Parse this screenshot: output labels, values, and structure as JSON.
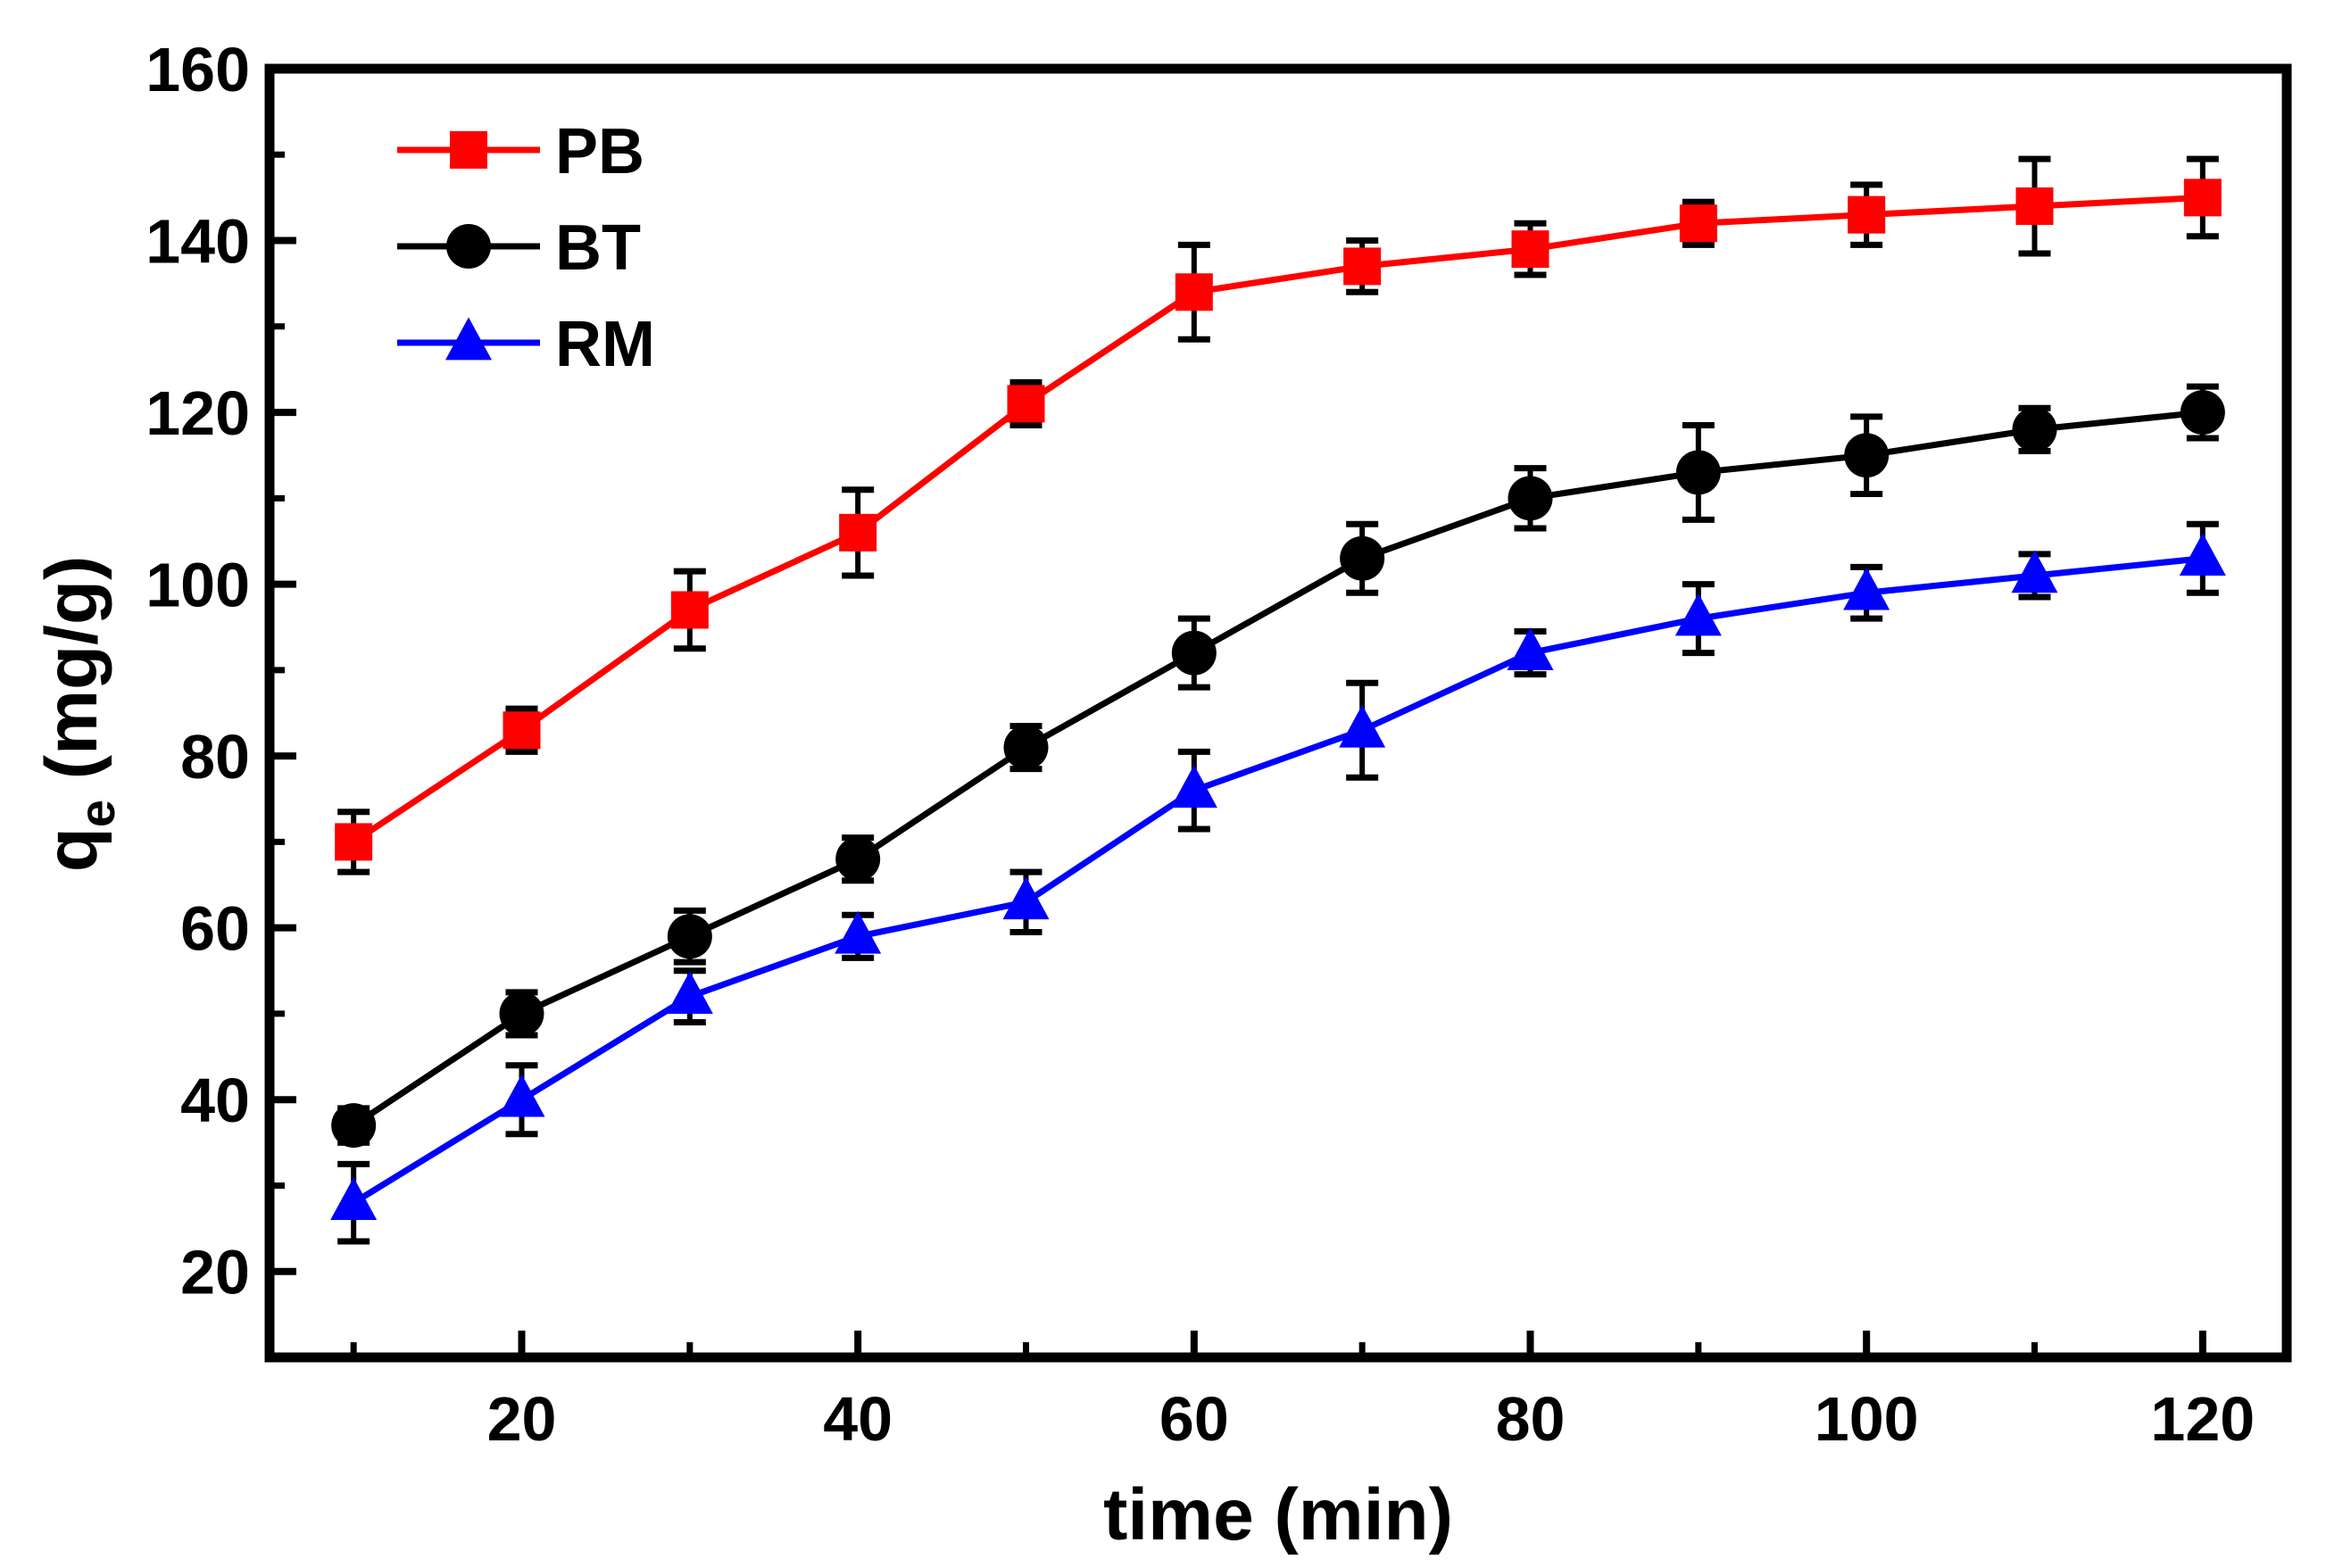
{
  "chart_data": {
    "type": "line",
    "title": "",
    "xlabel": "time (min)",
    "ylabel": {
      "main": "q",
      "sub": "e",
      "unit": " (mg/g)"
    },
    "xlim": [
      5,
      125
    ],
    "ylim": [
      10,
      160
    ],
    "xticks": [
      20,
      40,
      60,
      80,
      100,
      120
    ],
    "xtick_labels": [
      "20",
      "40",
      "60",
      "80",
      "100",
      "120"
    ],
    "xminor": [
      10,
      30,
      50,
      70,
      90,
      110
    ],
    "yticks": [
      20,
      40,
      60,
      80,
      100,
      120,
      140,
      160
    ],
    "ytick_labels": [
      "20",
      "40",
      "60",
      "80",
      "100",
      "120",
      "140",
      "160"
    ],
    "yminor": [
      10,
      30,
      50,
      70,
      90,
      110,
      130,
      150
    ],
    "grid": false,
    "legend_position": "top-left",
    "x": [
      10,
      20,
      30,
      40,
      50,
      60,
      70,
      80,
      90,
      100,
      110,
      120
    ],
    "series": [
      {
        "name": "PB",
        "color": "#ff0000",
        "marker": "square",
        "values": [
          70,
          83,
          97,
          106,
          121,
          134,
          137,
          139,
          142,
          143,
          144,
          145
        ],
        "errors": [
          3.5,
          2.5,
          4.5,
          5,
          2.5,
          5.5,
          3,
          3,
          2.5,
          3.5,
          5.5,
          4.5
        ]
      },
      {
        "name": "BT",
        "color": "#000000",
        "marker": "circle",
        "values": [
          37,
          50,
          59,
          68,
          81,
          92,
          103,
          110,
          113,
          115,
          118,
          120
        ],
        "errors": [
          2,
          2.5,
          3,
          2.5,
          2.5,
          4,
          4,
          3.5,
          5.5,
          4.5,
          2.5,
          3
        ]
      },
      {
        "name": "RM",
        "color": "#0000ff",
        "marker": "triangle",
        "values": [
          28,
          40,
          52,
          59,
          63,
          76,
          83,
          92,
          96,
          99,
          101,
          103
        ],
        "errors": [
          4.5,
          4,
          3,
          2.5,
          3.5,
          4.5,
          5.5,
          2.5,
          4,
          3,
          2.5,
          4
        ]
      }
    ]
  }
}
